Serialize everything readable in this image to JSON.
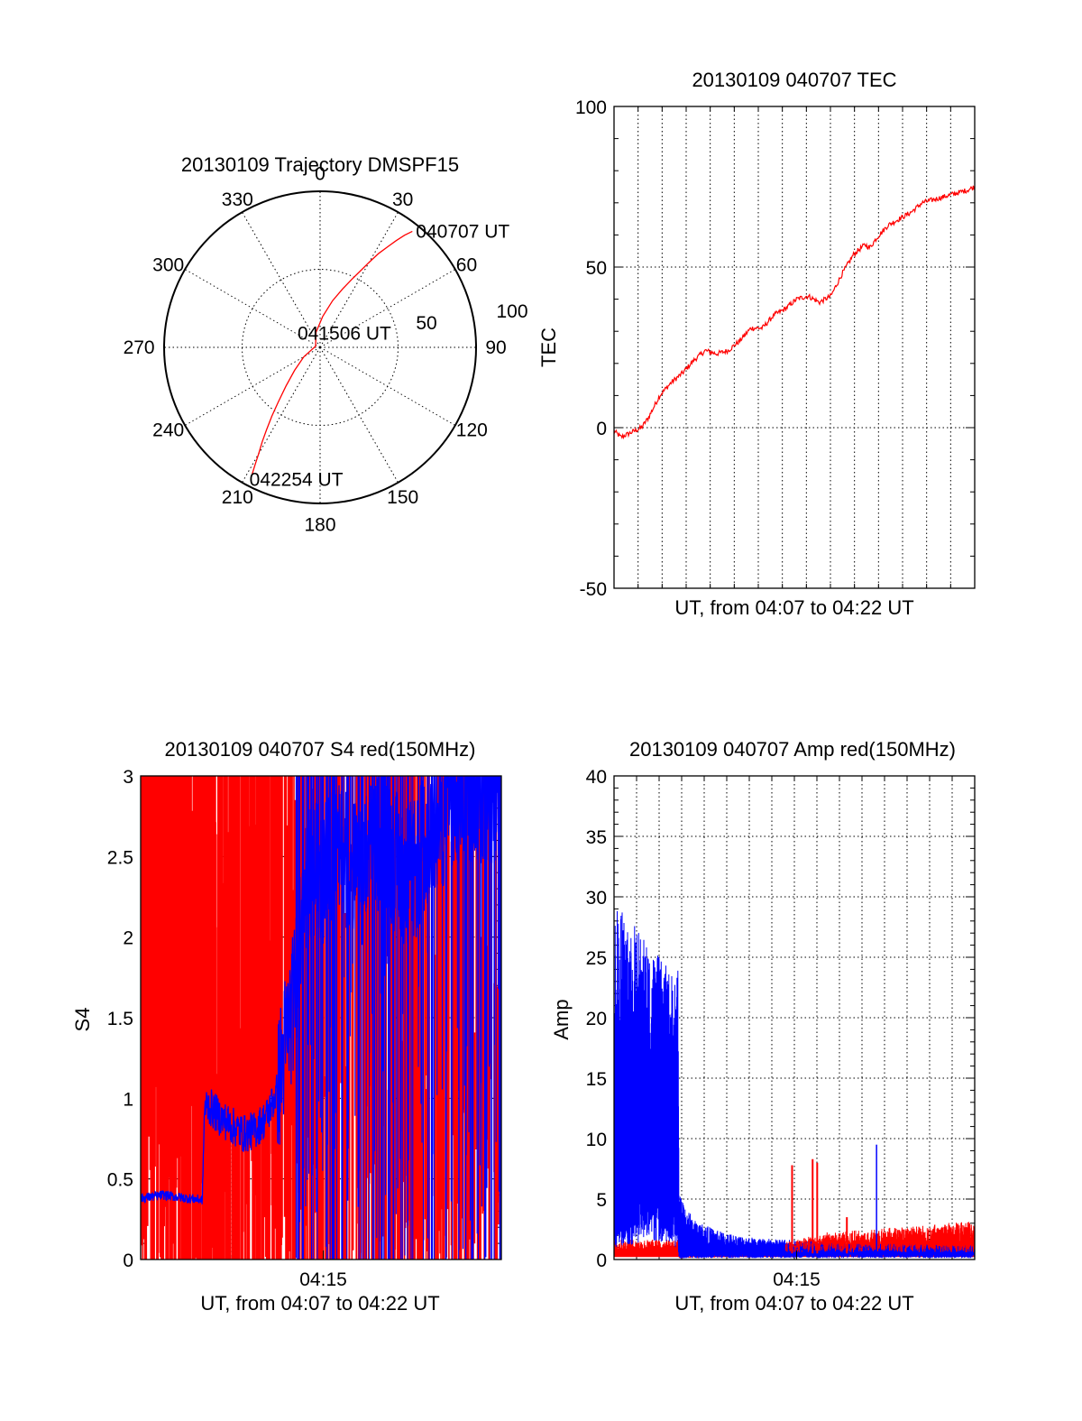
{
  "colors": {
    "red": "#ff0000",
    "blue": "#0000ff",
    "axis": "#000000",
    "background": "#ffffff"
  },
  "chart_data": [
    {
      "id": "trajectory",
      "type": "polar",
      "title": "20130109 Trajectory DMSPF15",
      "angle_labels": [
        {
          "angle": 0,
          "text": "0"
        },
        {
          "angle": 30,
          "text": "30"
        },
        {
          "angle": 60,
          "text": "60"
        },
        {
          "angle": 90,
          "text": "90"
        },
        {
          "angle": 120,
          "text": "120"
        },
        {
          "angle": 150,
          "text": "150"
        },
        {
          "angle": 180,
          "text": "180"
        },
        {
          "angle": 210,
          "text": "210"
        },
        {
          "angle": 240,
          "text": "240"
        },
        {
          "angle": 270,
          "text": "270"
        },
        {
          "angle": 300,
          "text": "300"
        },
        {
          "angle": 330,
          "text": "330"
        }
      ],
      "radial_max": 100,
      "radial_rings": [
        50,
        100
      ],
      "radial_labels": [
        "50",
        "100"
      ],
      "track": {
        "color": "red",
        "azimuth": [
          38.5,
          37.0,
          35.5,
          34.0,
          32.0,
          30.0,
          28.0,
          25.0,
          21.0,
          15.0,
          5.0,
          345.0,
          285.0,
          240.0,
          228.0,
          221.5,
          217.5,
          215.0,
          213.0,
          211.5,
          210.0,
          209.0,
          208.0
        ],
        "radius": [
          95,
          90,
          84,
          78,
          71,
          63,
          56,
          48,
          40,
          31,
          20,
          10,
          3,
          12,
          22,
          33,
          44,
          54,
          63,
          71,
          79,
          86,
          94
        ]
      },
      "annotations": [
        {
          "text": "040707 UT",
          "azimuth": 38.5,
          "radius": 95
        },
        {
          "text": "041506 UT",
          "azimuth": 285,
          "radius": 3
        },
        {
          "text": "042254 UT",
          "azimuth": 208,
          "radius": 94
        }
      ]
    },
    {
      "id": "tec",
      "type": "line",
      "title": "20130109 040707 TEC",
      "xlabel": "UT, from 04:07 to 04:22 UT",
      "ylabel": "TEC",
      "ylim": [
        -50,
        100
      ],
      "yticks": [
        -50,
        0,
        50,
        100
      ],
      "ytick_labels": [
        "-50",
        "0",
        "50",
        "100"
      ],
      "xlim_minutes": [
        0,
        15.8
      ],
      "xticks": [],
      "series": [
        {
          "color": "red",
          "x_minutes": [
            0,
            0.3,
            0.6,
            0.9,
            1.2,
            1.5,
            2.0,
            2.5,
            3.0,
            3.5,
            4.0,
            4.5,
            5.0,
            5.5,
            6.0,
            6.5,
            7.0,
            7.5,
            8.0,
            8.5,
            9.0,
            9.5,
            10.0,
            10.5,
            11.0,
            11.2,
            11.5,
            12.0,
            12.5,
            13.0,
            13.5,
            14.0,
            14.5,
            15.0,
            15.5,
            15.8
          ],
          "y": [
            -1,
            -3,
            -2,
            -1,
            0,
            3,
            10,
            14,
            17,
            21,
            24,
            23,
            24,
            27,
            31,
            31,
            35,
            37,
            40,
            41,
            39,
            41,
            48,
            54,
            57,
            56,
            59,
            63,
            65,
            67,
            70,
            71,
            72,
            73,
            74,
            75
          ]
        }
      ]
    },
    {
      "id": "s4",
      "type": "line",
      "title": "20130109 040707 S4 red(150MHz)",
      "xlabel": "UT, from 04:07 to 04:22 UT",
      "ylabel": "S4",
      "ylim": [
        0,
        3
      ],
      "yticks": [
        0,
        0.5,
        1,
        1.5,
        2,
        2.5,
        3
      ],
      "ytick_labels": [
        "0",
        "0.5",
        "1",
        "1.5",
        "2",
        "2.5",
        "3"
      ],
      "xlim_minutes": [
        0,
        15.8
      ],
      "xticks": [
        {
          "minute": 8.0,
          "label": "04:15"
        }
      ],
      "series": [
        {
          "color": "red",
          "style": "spikes",
          "note_range_minutes": [
            0,
            15.8
          ],
          "baseline": 0.9,
          "spike_max": 3.0
        },
        {
          "color": "blue",
          "x_minutes": [
            0,
            0.5,
            1.0,
            1.5,
            2.0,
            2.7,
            2.8,
            3.0,
            3.5,
            4.0,
            4.5,
            5.0,
            5.5,
            6.0,
            6.4,
            6.7,
            7.0,
            7.3,
            7.5,
            8.0,
            8.5,
            9.0,
            9.5,
            10.0,
            10.5,
            11.0,
            11.5,
            12.0,
            12.5,
            13.0,
            13.5,
            14.0,
            14.5,
            15.0,
            15.5,
            15.8
          ],
          "y": [
            0.38,
            0.39,
            0.4,
            0.39,
            0.38,
            0.37,
            0.95,
            0.95,
            0.88,
            0.83,
            0.78,
            0.8,
            0.88,
            1.05,
            1.4,
            1.6,
            2.0,
            2.3,
            2.4,
            2.4,
            2.5,
            2.5,
            2.4,
            2.5,
            2.6,
            2.5,
            2.4,
            2.4,
            2.6,
            2.7,
            2.8,
            2.9,
            2.9,
            2.9,
            2.9,
            2.9
          ]
        }
      ]
    },
    {
      "id": "amp",
      "type": "line",
      "title": "20130109 040707 Amp red(150MHz)",
      "xlabel": "UT, from 04:07 to 04:22 UT",
      "ylabel": "Amp",
      "ylim": [
        0,
        40
      ],
      "yticks": [
        0,
        5,
        10,
        15,
        20,
        25,
        30,
        35,
        40
      ],
      "ytick_labels": [
        "0",
        "5",
        "10",
        "15",
        "20",
        "25",
        "30",
        "35",
        "40"
      ],
      "xlim_minutes": [
        0,
        15.8
      ],
      "xticks": [
        {
          "minute": 8.0,
          "label": "04:15"
        }
      ],
      "series": [
        {
          "color": "blue",
          "x_minutes": [
            0,
            0.4,
            0.8,
            1.2,
            1.6,
            2.0,
            2.4,
            2.8,
            2.85,
            3.5,
            4.5,
            5.5,
            6.5,
            7.5,
            8.5,
            9.5,
            10.5,
            11.5,
            12.5,
            13.5,
            14.5,
            15.5,
            15.8
          ],
          "ymin": [
            3,
            4,
            4,
            5,
            5,
            5,
            4,
            3,
            0.3,
            0.4,
            0.4,
            0.4,
            0.4,
            0.4,
            0.4,
            0.4,
            0.4,
            0.4,
            0.4,
            0.4,
            0.4,
            0.4,
            0.4
          ],
          "ymax": [
            30,
            29,
            28,
            27,
            26,
            25,
            24,
            24,
            5,
            3,
            2.2,
            1.8,
            1.6,
            1.5,
            1.4,
            1.3,
            1.2,
            1.2,
            1.2,
            1.2,
            1.1,
            1.1,
            1.1
          ],
          "peaks": [
            {
              "x_minutes": 11.5,
              "y": 9.5
            }
          ]
        },
        {
          "color": "red",
          "x_minutes": [
            0,
            2.8,
            2.85,
            6.0,
            7.0,
            8.0,
            9.0,
            10.0,
            11.0,
            12.0,
            13.0,
            14.0,
            15.0,
            15.8
          ],
          "ymax": [
            1.5,
            1.5,
            0.3,
            0.6,
            1.0,
            1.4,
            1.8,
            2.0,
            2.0,
            2.2,
            2.3,
            2.4,
            2.6,
            2.8
          ],
          "peaks": [
            {
              "x_minutes": 7.8,
              "y": 7.8
            },
            {
              "x_minutes": 8.7,
              "y": 8.3
            },
            {
              "x_minutes": 8.9,
              "y": 8.0
            },
            {
              "x_minutes": 10.2,
              "y": 3.5
            }
          ]
        }
      ]
    }
  ]
}
